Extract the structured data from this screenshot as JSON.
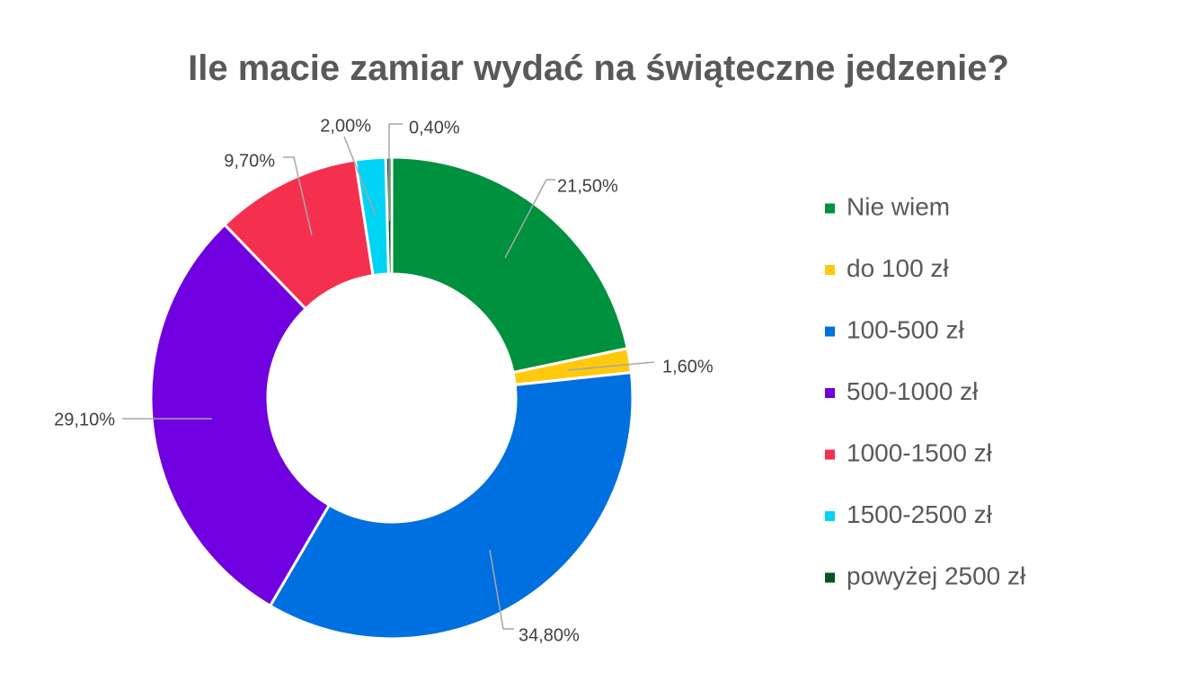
{
  "chart_data": {
    "type": "pie",
    "subtype": "donut",
    "title": "Ile macie zamiar wydać na świąteczne jedzenie?",
    "categories": [
      "Nie wiem",
      "do 100 zł",
      "100-500 zł",
      "500-1000 zł",
      "1000-1500 zł",
      "1500-2500 zł",
      "powyżej 2500 zł"
    ],
    "values": [
      21.5,
      1.6,
      34.8,
      29.1,
      9.7,
      2.0,
      0.4
    ],
    "data_labels": [
      "21,50%",
      "1,60%",
      "34,80%",
      "29,10%",
      "9,70%",
      "2,00%",
      "0,40%"
    ],
    "colors": [
      "#00913f",
      "#ffc90e",
      "#0070e0",
      "#7000e0",
      "#f5304f",
      "#00d4f5",
      "#00561f"
    ],
    "legend": {
      "position": "right"
    }
  }
}
